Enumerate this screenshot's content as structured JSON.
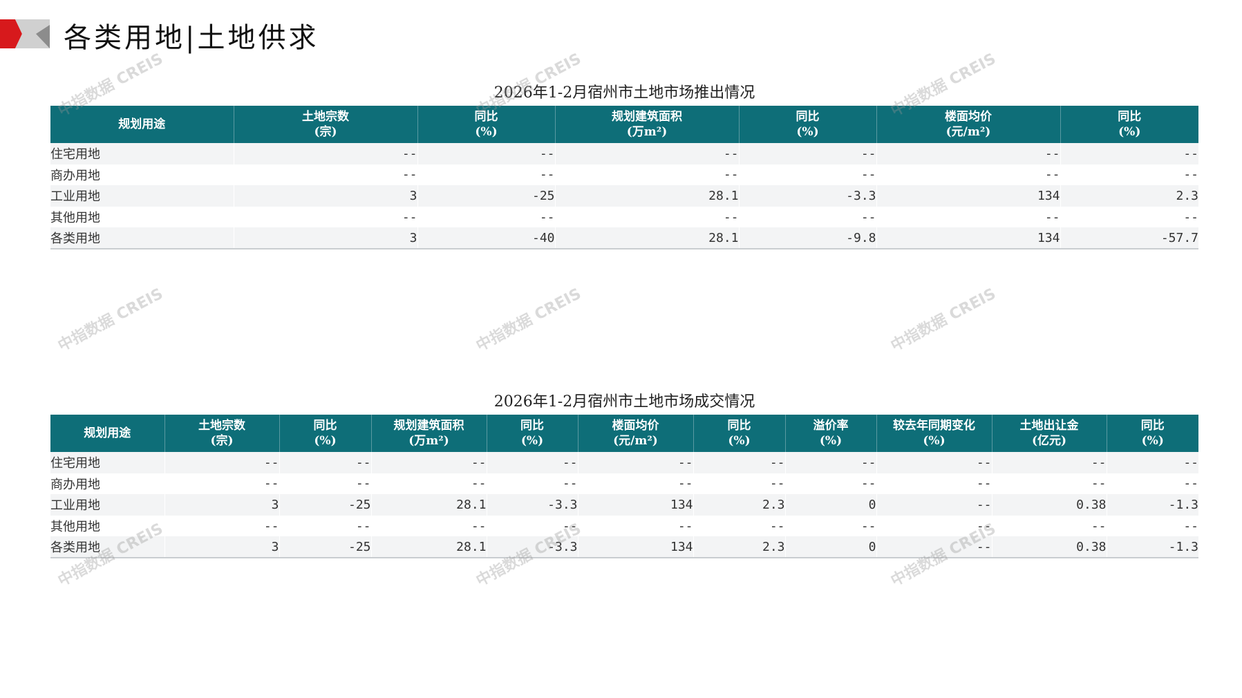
{
  "header": {
    "title": "各类用地|土地供求",
    "accent_color": "#d7191c",
    "header_color": "#0e6e78"
  },
  "watermark": "中指数据 CREIS",
  "supply": {
    "title": "2026年1-2月宿州市土地市场推出情况",
    "columns": [
      [
        "规划用途",
        ""
      ],
      [
        "土地宗数",
        "(宗)"
      ],
      [
        "同比",
        "(%)"
      ],
      [
        "规划建筑面积",
        "(万m²)"
      ],
      [
        "同比",
        "(%)"
      ],
      [
        "楼面均价",
        "(元/m²)"
      ],
      [
        "同比",
        "(%)"
      ]
    ],
    "rows": [
      [
        "住宅用地",
        "--",
        "--",
        "--",
        "--",
        "--",
        "--"
      ],
      [
        "商办用地",
        "--",
        "--",
        "--",
        "--",
        "--",
        "--"
      ],
      [
        "工业用地",
        "3",
        "-25",
        "28.1",
        "-3.3",
        "134",
        "2.3"
      ],
      [
        "其他用地",
        "--",
        "--",
        "--",
        "--",
        "--",
        "--"
      ],
      [
        "各类用地",
        "3",
        "-40",
        "28.1",
        "-9.8",
        "134",
        "-57.7"
      ]
    ]
  },
  "deal": {
    "title": "2026年1-2月宿州市土地市场成交情况",
    "columns": [
      [
        "规划用途",
        ""
      ],
      [
        "土地宗数",
        "(宗)"
      ],
      [
        "同比",
        "(%)"
      ],
      [
        "规划建筑面积",
        "(万m²)"
      ],
      [
        "同比",
        "(%)"
      ],
      [
        "楼面均价",
        "(元/m²)"
      ],
      [
        "同比",
        "(%)"
      ],
      [
        "溢价率",
        "(%)"
      ],
      [
        "较去年同期变化",
        "(%)"
      ],
      [
        "土地出让金",
        "(亿元)"
      ],
      [
        "同比",
        "(%)"
      ]
    ],
    "rows": [
      [
        "住宅用地",
        "--",
        "--",
        "--",
        "--",
        "--",
        "--",
        "--",
        "--",
        "--",
        "--"
      ],
      [
        "商办用地",
        "--",
        "--",
        "--",
        "--",
        "--",
        "--",
        "--",
        "--",
        "--",
        "--"
      ],
      [
        "工业用地",
        "3",
        "-25",
        "28.1",
        "-3.3",
        "134",
        "2.3",
        "0",
        "--",
        "0.38",
        "-1.3"
      ],
      [
        "其他用地",
        "--",
        "--",
        "--",
        "--",
        "--",
        "--",
        "--",
        "--",
        "--",
        "--"
      ],
      [
        "各类用地",
        "3",
        "-25",
        "28.1",
        "-3.3",
        "134",
        "2.3",
        "0",
        "--",
        "0.38",
        "-1.3"
      ]
    ]
  }
}
